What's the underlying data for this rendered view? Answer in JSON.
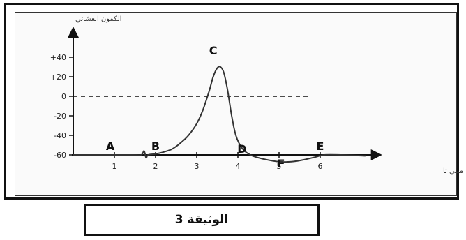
{
  "chart_data": {
    "type": "line",
    "title": "",
    "ylabel": "الكمون الغشائي",
    "xlabel": "الزمن ميلي ثا",
    "ylim": [
      -70,
      50
    ],
    "xlim": [
      0,
      7.3
    ],
    "yticks": [
      {
        "value": 40,
        "label": "+40"
      },
      {
        "value": 20,
        "label": "+20"
      },
      {
        "value": 0,
        "label": "0"
      },
      {
        "value": -20,
        "label": "-20"
      },
      {
        "value": -40,
        "label": "-40"
      },
      {
        "value": -60,
        "label": "-60"
      }
    ],
    "xticks": [
      {
        "value": 1,
        "label": "1"
      },
      {
        "value": 2,
        "label": "2"
      },
      {
        "value": 3,
        "label": "3"
      },
      {
        "value": 4,
        "label": "4"
      },
      {
        "value": 5,
        "label": "5"
      },
      {
        "value": 6,
        "label": "6"
      }
    ],
    "reference_line": {
      "y": 0,
      "x_end": 5.7,
      "style": "dashed"
    },
    "series": [
      {
        "points": [
          [
            0,
            -60
          ],
          [
            1.4,
            -60
          ],
          [
            1.65,
            -60
          ],
          [
            1.72,
            -56
          ],
          [
            1.77,
            -63
          ],
          [
            1.82,
            -60
          ],
          [
            2.0,
            -59
          ],
          [
            2.2,
            -57
          ],
          [
            2.4,
            -54
          ],
          [
            2.6,
            -48
          ],
          [
            2.8,
            -40
          ],
          [
            3.0,
            -28
          ],
          [
            3.15,
            -14
          ],
          [
            3.3,
            5
          ],
          [
            3.4,
            20
          ],
          [
            3.5,
            29
          ],
          [
            3.58,
            30
          ],
          [
            3.66,
            24
          ],
          [
            3.75,
            6
          ],
          [
            3.85,
            -20
          ],
          [
            3.95,
            -40
          ],
          [
            4.1,
            -53
          ],
          [
            4.3,
            -60
          ],
          [
            4.6,
            -64
          ],
          [
            5.0,
            -67
          ],
          [
            5.3,
            -67
          ],
          [
            5.6,
            -65
          ],
          [
            5.9,
            -62
          ],
          [
            6.1,
            -60
          ],
          [
            6.5,
            -60
          ],
          [
            7.1,
            -61
          ]
        ]
      }
    ],
    "annotations": [
      {
        "label": "A",
        "x": 0.9,
        "y": -55
      },
      {
        "label": "B",
        "x": 2.0,
        "y": -55
      },
      {
        "label": "C",
        "x": 3.4,
        "y": 43
      },
      {
        "label": "D",
        "x": 4.1,
        "y": -58
      },
      {
        "label": "E",
        "x": 6.0,
        "y": -55
      },
      {
        "label": "F",
        "x": 5.05,
        "y": -73
      }
    ]
  },
  "caption": "الوثيقة 3"
}
